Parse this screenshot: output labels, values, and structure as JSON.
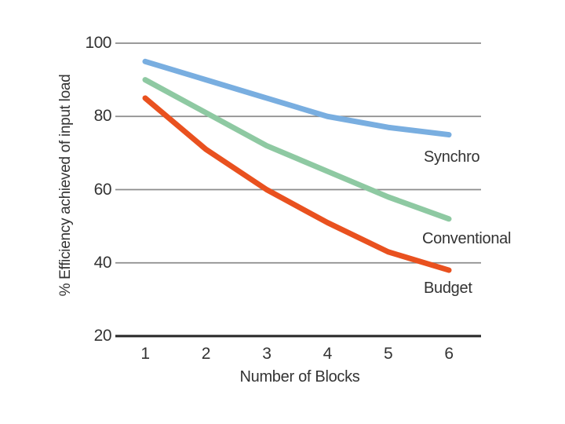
{
  "page": {
    "background": "#ffffff"
  },
  "colors": {
    "grid": "#8C8C8C",
    "axis": "#262626",
    "text": "#333333"
  },
  "chart_data": {
    "type": "line",
    "x": [
      1,
      2,
      3,
      4,
      5,
      6
    ],
    "xlabel": "Number of Blocks",
    "ylabel": "% Efficiency achieved of input load",
    "ylim": [
      20,
      100
    ],
    "yticks": [
      20,
      40,
      60,
      80,
      100
    ],
    "grid": "horizontal-gridlines-on",
    "legend": "inline-labels-right-of-line-ends",
    "series": [
      {
        "name": "Synchro",
        "color": "#79AEE0",
        "values": [
          95,
          90,
          85,
          80,
          77,
          75
        ]
      },
      {
        "name": "Conventional",
        "color": "#8EC9A2",
        "values": [
          90,
          81,
          72,
          65,
          58,
          52
        ]
      },
      {
        "name": "Budget",
        "color": "#E9511F",
        "values": [
          85,
          71,
          60,
          51,
          43,
          38
        ]
      }
    ]
  }
}
